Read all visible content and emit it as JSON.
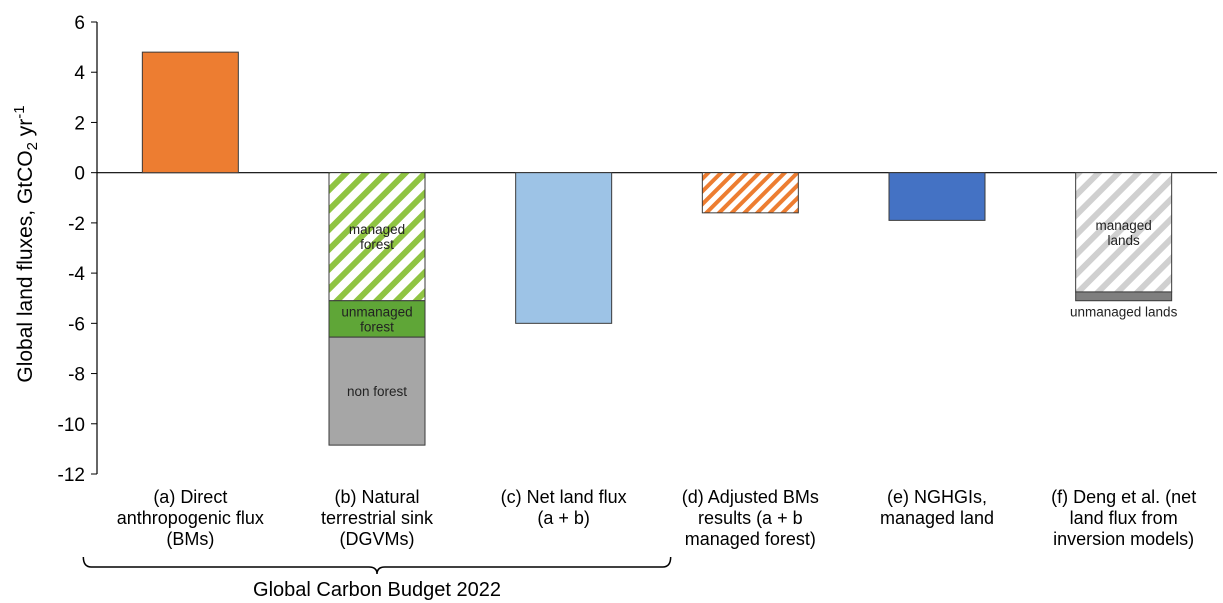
{
  "chart_data": {
    "type": "bar",
    "stacked": true,
    "ylabel": "Global land fluxes, GtCO2 yr-1",
    "ylabel_parts": {
      "main": "Global land fluxes, GtCO",
      "sub": "2",
      "mid": " yr",
      "sup": "-1"
    },
    "ylim": [
      -12,
      6
    ],
    "yticks": [
      6,
      4,
      2,
      0,
      -2,
      -4,
      -6,
      -8,
      -10,
      -12
    ],
    "grid": false,
    "legend": "none",
    "categories": [
      {
        "lines": [
          "(a) Direct",
          "anthropogenic flux",
          "(BMs)"
        ]
      },
      {
        "lines": [
          "(b) Natural",
          "terrestrial sink",
          "(DGVMs)"
        ]
      },
      {
        "lines": [
          "(c) Net land flux",
          "(a + b)"
        ]
      },
      {
        "lines": [
          "(d) Adjusted BMs",
          "results (a + b",
          "managed forest)"
        ]
      },
      {
        "lines": [
          "(e) NGHGIs,",
          "managed land"
        ]
      },
      {
        "lines": [
          "(f) Deng et al. (net",
          "land flux from",
          "inversion models)"
        ]
      }
    ],
    "bars": [
      {
        "segments": [
          {
            "value": 4.8,
            "color": "#ed7d31",
            "pattern": "solid",
            "label_lines": []
          }
        ]
      },
      {
        "segments": [
          {
            "value": -5.1,
            "color": "#8fc442",
            "pattern": "hatch",
            "label_lines": [
              "managed",
              "forest"
            ]
          },
          {
            "value": -1.45,
            "color": "#5fa637",
            "pattern": "solid",
            "label_lines": [
              "unmanaged",
              "forest"
            ]
          },
          {
            "value": -4.3,
            "color": "#a6a6a6",
            "pattern": "solid",
            "label_lines": [
              "non forest"
            ]
          }
        ]
      },
      {
        "segments": [
          {
            "value": -6.0,
            "color": "#9dc3e6",
            "pattern": "solid",
            "label_lines": []
          }
        ]
      },
      {
        "segments": [
          {
            "value": -1.6,
            "color": "#ed7d31",
            "pattern": "hatch",
            "label_lines": []
          }
        ]
      },
      {
        "segments": [
          {
            "value": -1.9,
            "color": "#4472c4",
            "pattern": "solid",
            "label_lines": []
          }
        ]
      },
      {
        "segments": [
          {
            "value": -4.75,
            "color": "#d0d0d0",
            "pattern": "hatch",
            "label_lines": [
              "managed",
              "lands"
            ]
          },
          {
            "value": -0.35,
            "color": "#7f7f7f",
            "pattern": "solid",
            "label_lines": [
              "unmanaged lands"
            ],
            "label_below": true
          }
        ]
      }
    ],
    "bracket": {
      "label": "Global Carbon Budget 2022",
      "from_category": 0,
      "to_category": 2
    }
  }
}
